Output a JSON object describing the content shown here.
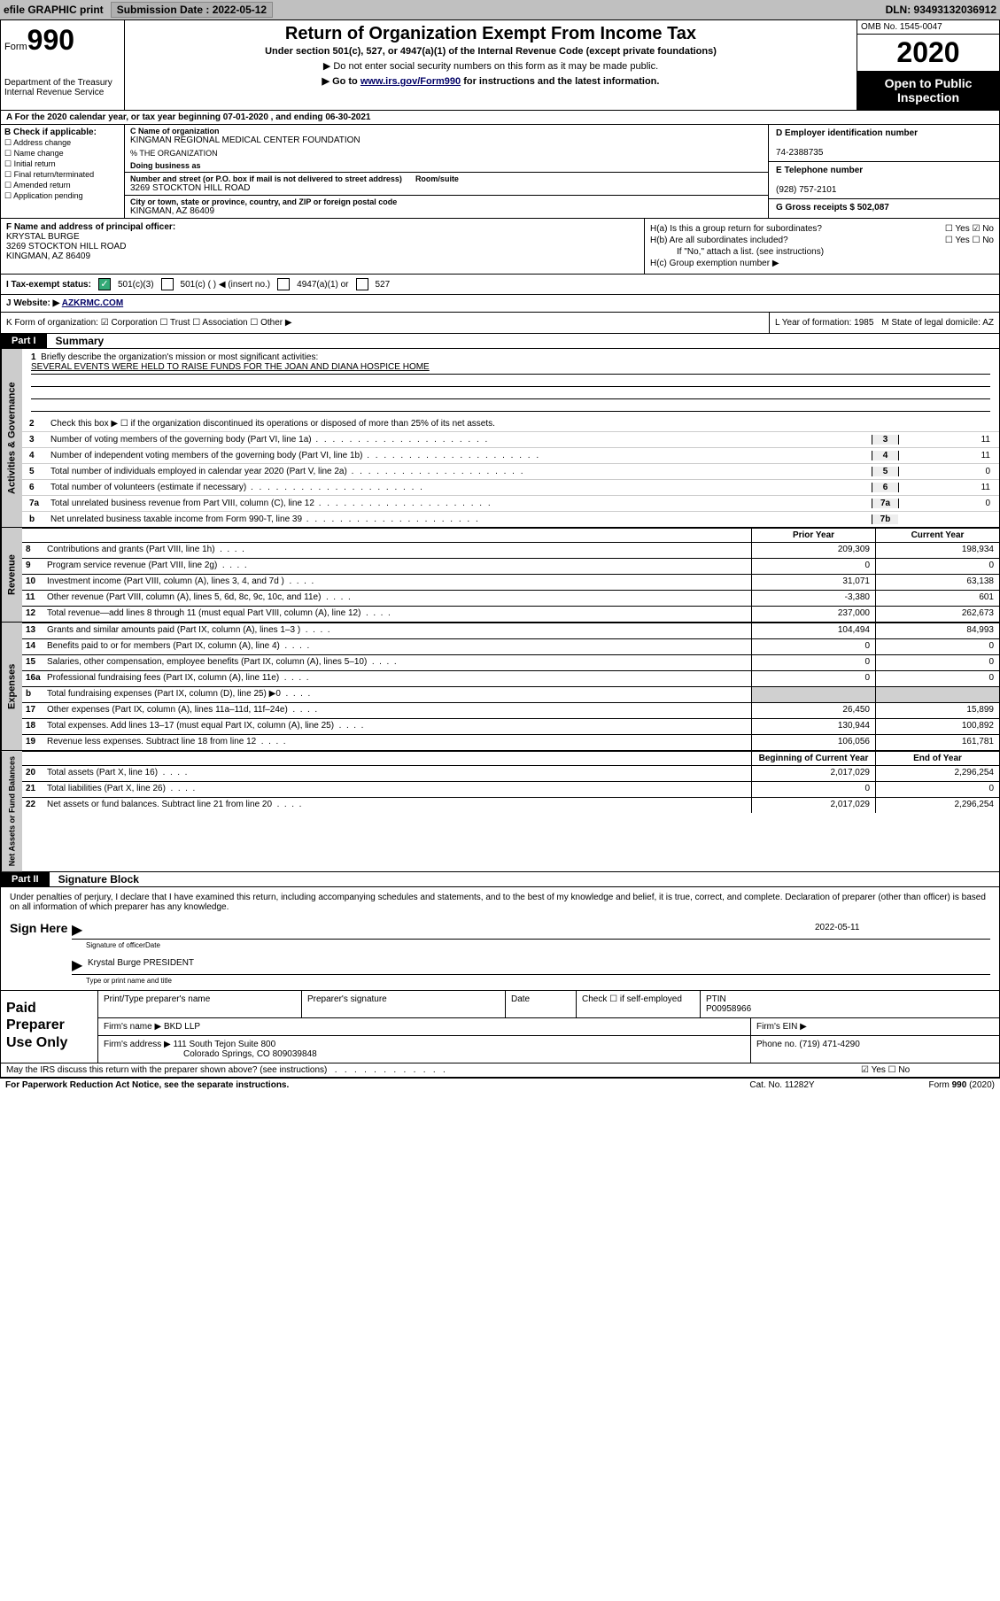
{
  "top": {
    "efile": "efile GRAPHIC print",
    "sub_label": "Submission Date : 2022-05-12",
    "dln": "DLN: 93493132036912"
  },
  "header": {
    "form_word": "Form",
    "form_num": "990",
    "dept": "Department of the Treasury\nInternal Revenue Service",
    "title": "Return of Organization Exempt From Income Tax",
    "sub1": "Under section 501(c), 527, or 4947(a)(1) of the Internal Revenue Code (except private foundations)",
    "sub2": "▶ Do not enter social security numbers on this form as it may be made public.",
    "sub3_pre": "▶ Go to ",
    "sub3_link": "www.irs.gov/Form990",
    "sub3_post": " for instructions and the latest information.",
    "omb": "OMB No. 1545-0047",
    "year": "2020",
    "inspect": "Open to Public Inspection"
  },
  "row_a": "A   For the 2020 calendar year, or tax year beginning 07-01-2020    , and ending 06-30-2021",
  "col_b": {
    "hdr": "B Check if applicable:",
    "items": [
      "Address change",
      "Name change",
      "Initial return",
      "Final return/terminated",
      "Amended return",
      "Application pending"
    ]
  },
  "col_c": {
    "name_lbl": "C Name of organization",
    "name": "KINGMAN REGIONAL MEDICAL CENTER FOUNDATION",
    "pct": "% THE ORGANIZATION",
    "dba_lbl": "Doing business as",
    "addr_lbl": "Number and street (or P.O. box if mail is not delivered to street address)",
    "room_lbl": "Room/suite",
    "addr": "3269 STOCKTON HILL ROAD",
    "city_lbl": "City or town, state or province, country, and ZIP or foreign postal code",
    "city": "KINGMAN, AZ  86409"
  },
  "col_d": {
    "ein_lbl": "D Employer identification number",
    "ein": "74-2388735",
    "tel_lbl": "E Telephone number",
    "tel": "(928) 757-2101",
    "gross_lbl": "G Gross receipts $ 502,087"
  },
  "block_f": {
    "f_lbl": "F  Name and address of principal officer:",
    "officer": "KRYSTAL BURGE\n3269 STOCKTON HILL ROAD\nKINGMAN, AZ  86409",
    "ha": "H(a)  Is this a group return for subordinates?",
    "ha_yn": "☐ Yes  ☑ No",
    "hb": "H(b)  Are all subordinates included?",
    "hb_yn": "☐ Yes  ☐ No",
    "hb_note": "If \"No,\" attach a list. (see instructions)",
    "hc": "H(c)  Group exemption number ▶"
  },
  "block_i": {
    "lbl": "I   Tax-exempt status:",
    "o1": "501(c)(3)",
    "o2": "501(c) (   ) ◀ (insert no.)",
    "o3": "4947(a)(1) or",
    "o4": "527"
  },
  "block_j": {
    "lbl": "J   Website: ▶",
    "val": "AZKRMC.COM"
  },
  "block_k": {
    "left": "K Form of organization:  ☑ Corporation  ☐ Trust  ☐ Association  ☐ Other ▶",
    "l": "L Year of formation: 1985",
    "m": "M State of legal domicile: AZ"
  },
  "part1": {
    "tab": "Part I",
    "ttl": "Summary"
  },
  "mission": {
    "num": "1",
    "lbl": "Briefly describe the organization's mission or most significant activities:",
    "txt": "SEVERAL EVENTS WERE HELD TO RAISE FUNDS FOR THE JOAN AND DIANA HOSPICE HOME"
  },
  "gov_vtab": "Activities & Governance",
  "gov_lines": [
    {
      "num": "2",
      "txt": "Check this box ▶ ☐  if the organization discontinued its operations or disposed of more than 25% of its net assets.",
      "box": "",
      "val": ""
    },
    {
      "num": "3",
      "txt": "Number of voting members of the governing body (Part VI, line 1a)",
      "box": "3",
      "val": "11"
    },
    {
      "num": "4",
      "txt": "Number of independent voting members of the governing body (Part VI, line 1b)",
      "box": "4",
      "val": "11"
    },
    {
      "num": "5",
      "txt": "Total number of individuals employed in calendar year 2020 (Part V, line 2a)",
      "box": "5",
      "val": "0"
    },
    {
      "num": "6",
      "txt": "Total number of volunteers (estimate if necessary)",
      "box": "6",
      "val": "11"
    },
    {
      "num": "7a",
      "txt": "Total unrelated business revenue from Part VIII, column (C), line 12",
      "box": "7a",
      "val": "0"
    },
    {
      "num": "b",
      "txt": "Net unrelated business taxable income from Form 990-T, line 39",
      "box": "7b",
      "val": ""
    }
  ],
  "rev_vtab": "Revenue",
  "col_hdrs": {
    "c1": "Prior Year",
    "c2": "Current Year"
  },
  "rev_lines": [
    {
      "num": "8",
      "txt": "Contributions and grants (Part VIII, line 1h)",
      "c1": "209,309",
      "c2": "198,934"
    },
    {
      "num": "9",
      "txt": "Program service revenue (Part VIII, line 2g)",
      "c1": "0",
      "c2": "0"
    },
    {
      "num": "10",
      "txt": "Investment income (Part VIII, column (A), lines 3, 4, and 7d )",
      "c1": "31,071",
      "c2": "63,138"
    },
    {
      "num": "11",
      "txt": "Other revenue (Part VIII, column (A), lines 5, 6d, 8c, 9c, 10c, and 11e)",
      "c1": "-3,380",
      "c2": "601"
    },
    {
      "num": "12",
      "txt": "Total revenue—add lines 8 through 11 (must equal Part VIII, column (A), line 12)",
      "c1": "237,000",
      "c2": "262,673"
    }
  ],
  "exp_vtab": "Expenses",
  "exp_lines": [
    {
      "num": "13",
      "txt": "Grants and similar amounts paid (Part IX, column (A), lines 1–3 )",
      "c1": "104,494",
      "c2": "84,993"
    },
    {
      "num": "14",
      "txt": "Benefits paid to or for members (Part IX, column (A), line 4)",
      "c1": "0",
      "c2": "0"
    },
    {
      "num": "15",
      "txt": "Salaries, other compensation, employee benefits (Part IX, column (A), lines 5–10)",
      "c1": "0",
      "c2": "0"
    },
    {
      "num": "16a",
      "txt": "Professional fundraising fees (Part IX, column (A), line 11e)",
      "c1": "0",
      "c2": "0"
    },
    {
      "num": "b",
      "txt": "Total fundraising expenses (Part IX, column (D), line 25) ▶0",
      "c1": "",
      "c2": "",
      "shade": true
    },
    {
      "num": "17",
      "txt": "Other expenses (Part IX, column (A), lines 11a–11d, 11f–24e)",
      "c1": "26,450",
      "c2": "15,899"
    },
    {
      "num": "18",
      "txt": "Total expenses. Add lines 13–17 (must equal Part IX, column (A), line 25)",
      "c1": "130,944",
      "c2": "100,892"
    },
    {
      "num": "19",
      "txt": "Revenue less expenses. Subtract line 18 from line 12",
      "c1": "106,056",
      "c2": "161,781"
    }
  ],
  "na_vtab": "Net Assets or Fund Balances",
  "na_hdrs": {
    "c1": "Beginning of Current Year",
    "c2": "End of Year"
  },
  "na_lines": [
    {
      "num": "20",
      "txt": "Total assets (Part X, line 16)",
      "c1": "2,017,029",
      "c2": "2,296,254"
    },
    {
      "num": "21",
      "txt": "Total liabilities (Part X, line 26)",
      "c1": "0",
      "c2": "0"
    },
    {
      "num": "22",
      "txt": "Net assets or fund balances. Subtract line 21 from line 20",
      "c1": "2,017,029",
      "c2": "2,296,254"
    }
  ],
  "part2": {
    "tab": "Part II",
    "ttl": "Signature Block"
  },
  "sig": {
    "penalty": "Under penalties of perjury, I declare that I have examined this return, including accompanying schedules and statements, and to the best of my knowledge and belief, it is true, correct, and complete. Declaration of preparer (other than officer) is based on all information of which preparer has any knowledge.",
    "sign_here": "Sign Here",
    "sig_lbl": "Signature of officer",
    "date_lbl": "Date",
    "date_val": "2022-05-11",
    "name": "Krystal Burge  PRESIDENT",
    "name_lbl": "Type or print name and title"
  },
  "prep": {
    "left": "Paid Preparer Use Only",
    "h1": "Print/Type preparer's name",
    "h2": "Preparer's signature",
    "h3": "Date",
    "h4": "Check ☐ if self-employed",
    "h5_lbl": "PTIN",
    "h5_val": "P00958966",
    "firm_lbl": "Firm's name   ▶",
    "firm": "BKD LLP",
    "ein_lbl": "Firm's EIN ▶",
    "addr_lbl": "Firm's address ▶",
    "addr1": "111 South Tejon Suite 800",
    "addr2": "Colorado Springs, CO  809039848",
    "phone_lbl": "Phone no.",
    "phone": "(719) 471-4290"
  },
  "discuss": {
    "q": "May the IRS discuss this return with the preparer shown above? (see instructions)",
    "a": "☑ Yes   ☐ No"
  },
  "footer": {
    "f1": "For Paperwork Reduction Act Notice, see the separate instructions.",
    "f2": "Cat. No. 11282Y",
    "f3": "Form 990 (2020)"
  }
}
